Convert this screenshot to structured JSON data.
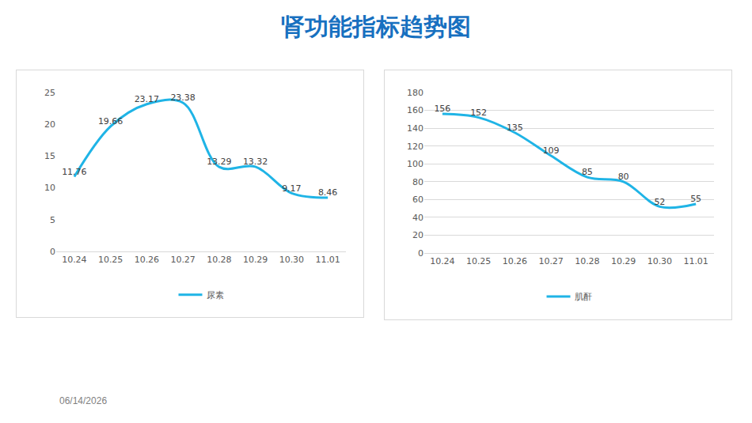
{
  "slide": {
    "title": "肾功能指标趋势图",
    "date": "06/14/2026"
  },
  "chart_data": [
    {
      "type": "line",
      "categories": [
        "10.24",
        "10.25",
        "10.26",
        "10.27",
        "10.28",
        "10.29",
        "10.30",
        "11.01"
      ],
      "series": [
        {
          "name": "尿素",
          "color": "#1fb4e6",
          "values": [
            11.76,
            19.66,
            23.17,
            23.38,
            13.29,
            13.32,
            9.17,
            8.46
          ]
        }
      ],
      "ylim": [
        0,
        25
      ],
      "yticks": [
        0,
        5,
        10,
        15,
        20,
        25
      ],
      "grid": false,
      "legend": "bottom",
      "data_labels": true,
      "line_style": "spline"
    },
    {
      "type": "line",
      "categories": [
        "10.24",
        "10.25",
        "10.26",
        "10.27",
        "10.28",
        "10.29",
        "10.30",
        "11.01"
      ],
      "series": [
        {
          "name": "肌酐",
          "color": "#1fb4e6",
          "values": [
            156,
            152,
            135,
            109,
            85,
            80,
            52,
            55
          ]
        }
      ],
      "ylim": [
        0,
        180
      ],
      "yticks": [
        0,
        20,
        40,
        60,
        80,
        100,
        120,
        140,
        160,
        180
      ],
      "grid": true,
      "legend": "bottom",
      "data_labels": true,
      "line_style": "spline"
    }
  ]
}
